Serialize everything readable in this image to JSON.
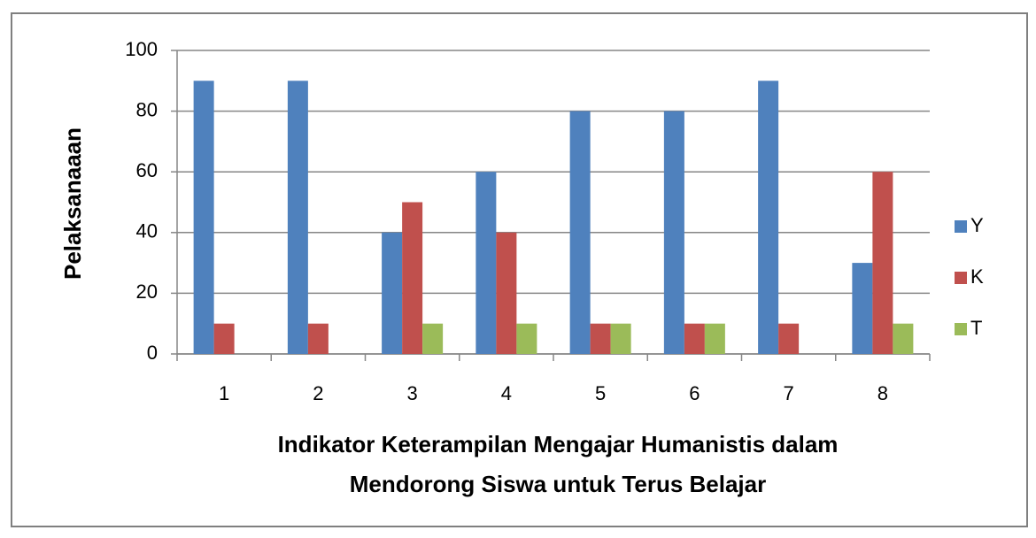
{
  "chart_data": {
    "type": "bar",
    "categories": [
      "1",
      "2",
      "3",
      "4",
      "5",
      "6",
      "7",
      "8"
    ],
    "series": [
      {
        "name": "Y",
        "color": "#4f81bd",
        "values": [
          90,
          90,
          40,
          60,
          80,
          80,
          90,
          30
        ]
      },
      {
        "name": "K",
        "color": "#c0504d",
        "values": [
          10,
          10,
          50,
          40,
          10,
          10,
          10,
          60
        ]
      },
      {
        "name": "T",
        "color": "#9bbb59",
        "values": [
          0,
          0,
          10,
          10,
          10,
          10,
          0,
          10
        ]
      }
    ],
    "ylim": [
      0,
      100
    ],
    "yticks": [
      0,
      20,
      40,
      60,
      80,
      100
    ],
    "grid": true,
    "y_label": "Pelaksanaaan",
    "x_label": [
      "Indikator Keterampilan Mengajar Humanistis dalam",
      "Mendorong Siswa untuk Terus Belajar"
    ],
    "legend": "right"
  }
}
